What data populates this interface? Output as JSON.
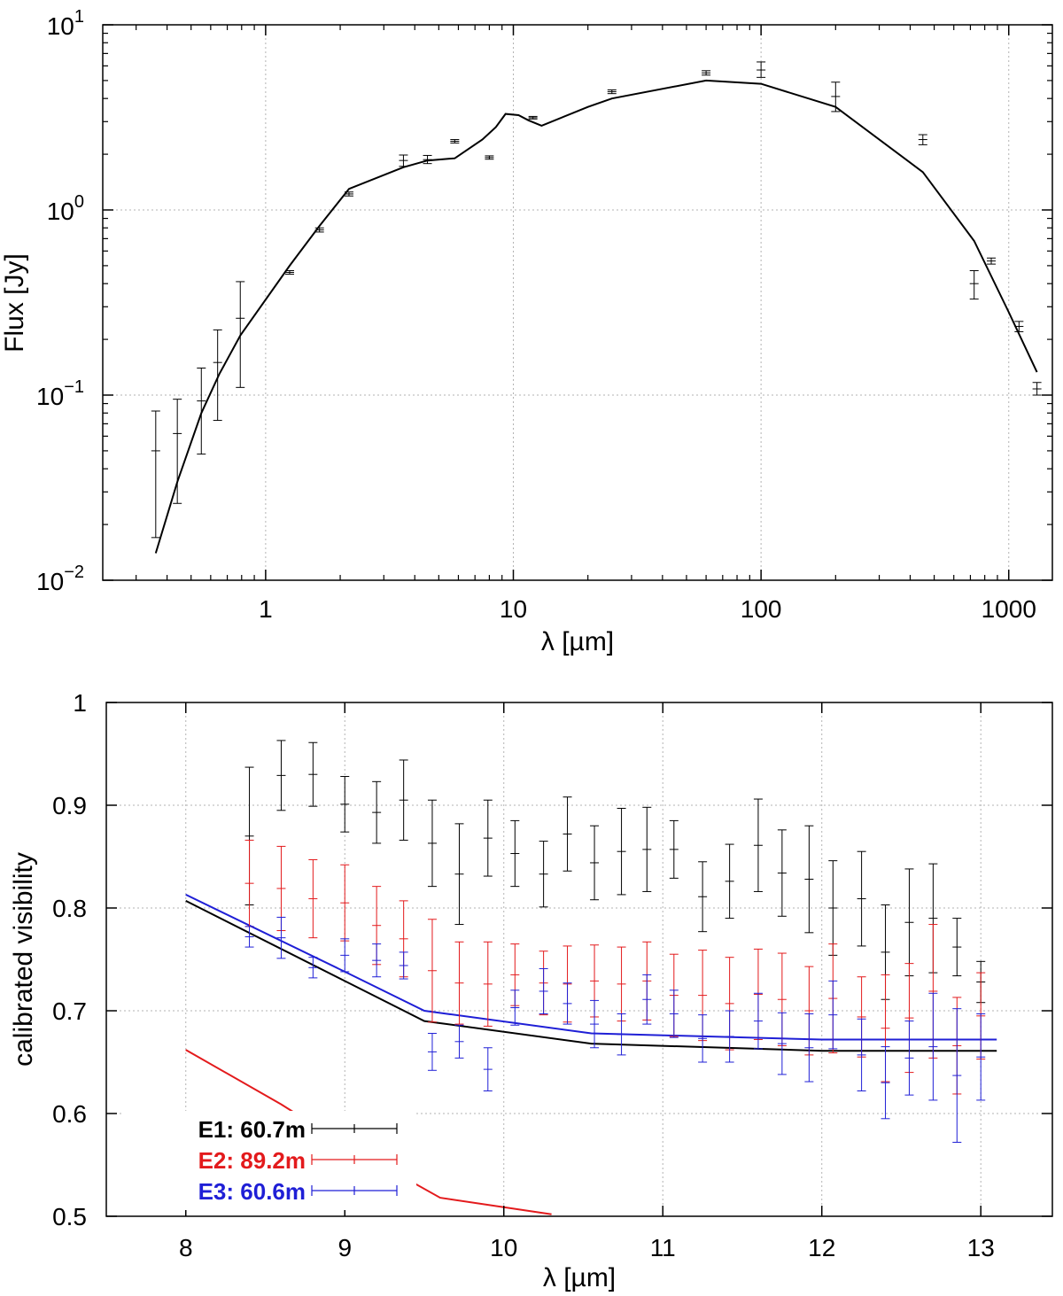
{
  "chart_data": [
    {
      "type": "scatter",
      "title": "",
      "xlabel": "λ [µm]",
      "ylabel": "Flux [Jy]",
      "xscale": "log",
      "yscale": "log",
      "xlim": [
        0.22,
        1500
      ],
      "ylim": [
        0.01,
        10
      ],
      "grid": true,
      "x_ticks": [
        {
          "value": 1,
          "label": "1"
        },
        {
          "value": 10,
          "label": "10"
        },
        {
          "value": 100,
          "label": "100"
        },
        {
          "value": 1000,
          "label": "1000"
        }
      ],
      "y_ticks": [
        {
          "value": 0.01,
          "base": "10",
          "exp": "−2"
        },
        {
          "value": 0.1,
          "base": "10",
          "exp": "−1"
        },
        {
          "value": 1,
          "base": "10",
          "exp": "0"
        },
        {
          "value": 10,
          "base": "10",
          "exp": "1"
        }
      ],
      "series": [
        {
          "kind": "errorbars",
          "color": "#000000",
          "points": [
            {
              "x": 0.36,
              "y": 0.05,
              "lo": 0.017,
              "hi": 0.082
            },
            {
              "x": 0.44,
              "y": 0.062,
              "lo": 0.026,
              "hi": 0.095
            },
            {
              "x": 0.55,
              "y": 0.093,
              "lo": 0.048,
              "hi": 0.14
            },
            {
              "x": 0.64,
              "y": 0.15,
              "lo": 0.073,
              "hi": 0.225
            },
            {
              "x": 0.79,
              "y": 0.26,
              "lo": 0.11,
              "hi": 0.41
            },
            {
              "x": 1.25,
              "y": 0.46,
              "lo": 0.45,
              "hi": 0.47
            },
            {
              "x": 1.65,
              "y": 0.78,
              "lo": 0.76,
              "hi": 0.8
            },
            {
              "x": 2.17,
              "y": 1.22,
              "lo": 1.19,
              "hi": 1.25
            },
            {
              "x": 3.6,
              "y": 1.85,
              "lo": 1.72,
              "hi": 1.98
            },
            {
              "x": 4.5,
              "y": 1.87,
              "lo": 1.78,
              "hi": 1.97
            },
            {
              "x": 5.8,
              "y": 2.35,
              "lo": 2.3,
              "hi": 2.4
            },
            {
              "x": 8.0,
              "y": 1.92,
              "lo": 1.88,
              "hi": 1.96
            },
            {
              "x": 12,
              "y": 3.15,
              "lo": 3.1,
              "hi": 3.2
            },
            {
              "x": 25,
              "y": 4.35,
              "lo": 4.25,
              "hi": 4.45
            },
            {
              "x": 60,
              "y": 5.5,
              "lo": 5.35,
              "hi": 5.65
            },
            {
              "x": 100,
              "y": 5.7,
              "lo": 5.2,
              "hi": 6.3
            },
            {
              "x": 200,
              "y": 4.1,
              "lo": 3.4,
              "hi": 4.9
            },
            {
              "x": 450,
              "y": 2.4,
              "lo": 2.25,
              "hi": 2.55
            },
            {
              "x": 725,
              "y": 0.4,
              "lo": 0.33,
              "hi": 0.47
            },
            {
              "x": 850,
              "y": 0.53,
              "lo": 0.51,
              "hi": 0.55
            },
            {
              "x": 1100,
              "y": 0.235,
              "lo": 0.22,
              "hi": 0.25
            },
            {
              "x": 1300,
              "y": 0.108,
              "lo": 0.1,
              "hi": 0.117
            }
          ]
        },
        {
          "kind": "line",
          "color": "#000000",
          "x": [
            0.36,
            0.44,
            0.55,
            0.65,
            0.79,
            1.25,
            1.65,
            2.17,
            3.6,
            4.5,
            5.8,
            7.5,
            8.5,
            9.3,
            10.5,
            11.5,
            13,
            20,
            25,
            60,
            100,
            200,
            450,
            725,
            1000,
            1300
          ],
          "y": [
            0.014,
            0.034,
            0.08,
            0.13,
            0.21,
            0.5,
            0.82,
            1.3,
            1.7,
            1.85,
            1.9,
            2.4,
            2.8,
            3.3,
            3.25,
            3.05,
            2.85,
            3.6,
            4.0,
            5.0,
            4.8,
            3.6,
            1.6,
            0.68,
            0.28,
            0.133
          ]
        }
      ]
    },
    {
      "type": "line",
      "title": "",
      "xlabel": "λ [µm]",
      "ylabel": "calibrated visibility",
      "xlim": [
        7.5,
        13.45
      ],
      "ylim": [
        0.5,
        1.0
      ],
      "grid": true,
      "x_ticks": [
        8,
        9,
        10,
        11,
        12,
        13
      ],
      "y_ticks": [
        {
          "value": 0.5,
          "label": "0.5"
        },
        {
          "value": 0.6,
          "label": "0.6"
        },
        {
          "value": 0.7,
          "label": "0.7"
        },
        {
          "value": 0.8,
          "label": "0.8"
        },
        {
          "value": 0.9,
          "label": "0.9"
        },
        {
          "value": 1.0,
          "label": "1"
        }
      ],
      "legend_position": "bottom-left",
      "series": [
        {
          "name": "E1: 60.7m",
          "color": "#000000",
          "points": [
            {
              "x": 8.4,
              "y": 0.87,
              "err": 0.067
            },
            {
              "x": 8.6,
              "y": 0.929,
              "err": 0.034
            },
            {
              "x": 8.8,
              "y": 0.93,
              "err": 0.031
            },
            {
              "x": 9.0,
              "y": 0.901,
              "err": 0.027
            },
            {
              "x": 9.2,
              "y": 0.893,
              "err": 0.03
            },
            {
              "x": 9.37,
              "y": 0.905,
              "err": 0.039
            },
            {
              "x": 9.55,
              "y": 0.863,
              "err": 0.042
            },
            {
              "x": 9.72,
              "y": 0.833,
              "err": 0.049
            },
            {
              "x": 9.9,
              "y": 0.868,
              "err": 0.037
            },
            {
              "x": 10.07,
              "y": 0.853,
              "err": 0.032
            },
            {
              "x": 10.25,
              "y": 0.833,
              "err": 0.032
            },
            {
              "x": 10.4,
              "y": 0.872,
              "err": 0.036
            },
            {
              "x": 10.57,
              "y": 0.844,
              "err": 0.036
            },
            {
              "x": 10.74,
              "y": 0.855,
              "err": 0.042
            },
            {
              "x": 10.9,
              "y": 0.857,
              "err": 0.041
            },
            {
              "x": 11.07,
              "y": 0.857,
              "err": 0.028
            },
            {
              "x": 11.25,
              "y": 0.811,
              "err": 0.034
            },
            {
              "x": 11.42,
              "y": 0.826,
              "err": 0.036
            },
            {
              "x": 11.6,
              "y": 0.861,
              "err": 0.045
            },
            {
              "x": 11.75,
              "y": 0.834,
              "err": 0.042
            },
            {
              "x": 11.92,
              "y": 0.828,
              "err": 0.052
            },
            {
              "x": 12.07,
              "y": 0.8,
              "err": 0.046
            },
            {
              "x": 12.25,
              "y": 0.809,
              "err": 0.046
            },
            {
              "x": 12.4,
              "y": 0.757,
              "err": 0.046
            },
            {
              "x": 12.55,
              "y": 0.786,
              "err": 0.052
            },
            {
              "x": 12.7,
              "y": 0.79,
              "err": 0.053
            },
            {
              "x": 12.85,
              "y": 0.762,
              "err": 0.028
            },
            {
              "x": 13.0,
              "y": 0.728,
              "err": 0.02
            }
          ]
        },
        {
          "name": "E2: 89.2m",
          "color": "#e31a1c",
          "points": [
            {
              "x": 8.4,
              "y": 0.824,
              "err": 0.042
            },
            {
              "x": 8.6,
              "y": 0.819,
              "err": 0.041
            },
            {
              "x": 8.8,
              "y": 0.809,
              "err": 0.038
            },
            {
              "x": 9.0,
              "y": 0.805,
              "err": 0.037
            },
            {
              "x": 9.2,
              "y": 0.783,
              "err": 0.038
            },
            {
              "x": 9.37,
              "y": 0.77,
              "err": 0.037
            },
            {
              "x": 9.55,
              "y": 0.739,
              "err": 0.05
            },
            {
              "x": 9.72,
              "y": 0.727,
              "err": 0.04
            },
            {
              "x": 9.9,
              "y": 0.726,
              "err": 0.041
            },
            {
              "x": 10.07,
              "y": 0.735,
              "err": 0.03
            },
            {
              "x": 10.25,
              "y": 0.727,
              "err": 0.031
            },
            {
              "x": 10.4,
              "y": 0.726,
              "err": 0.037
            },
            {
              "x": 10.57,
              "y": 0.729,
              "err": 0.035
            },
            {
              "x": 10.74,
              "y": 0.726,
              "err": 0.036
            },
            {
              "x": 10.9,
              "y": 0.729,
              "err": 0.038
            },
            {
              "x": 11.07,
              "y": 0.715,
              "err": 0.04
            },
            {
              "x": 11.25,
              "y": 0.715,
              "err": 0.044
            },
            {
              "x": 11.42,
              "y": 0.707,
              "err": 0.045
            },
            {
              "x": 11.6,
              "y": 0.716,
              "err": 0.044
            },
            {
              "x": 11.75,
              "y": 0.711,
              "err": 0.045
            },
            {
              "x": 11.92,
              "y": 0.7,
              "err": 0.043
            },
            {
              "x": 12.07,
              "y": 0.712,
              "err": 0.053
            },
            {
              "x": 12.25,
              "y": 0.694,
              "err": 0.039
            },
            {
              "x": 12.4,
              "y": 0.683,
              "err": 0.052
            },
            {
              "x": 12.55,
              "y": 0.693,
              "err": 0.053
            },
            {
              "x": 12.7,
              "y": 0.719,
              "err": 0.065
            },
            {
              "x": 12.85,
              "y": 0.666,
              "err": 0.047
            },
            {
              "x": 13.0,
              "y": 0.695,
              "err": 0.042
            }
          ],
          "model": {
            "x": [
              8.0,
              8.6,
              9.0,
              9.6,
              10.3
            ],
            "y": [
              0.662,
              0.609,
              0.57,
              0.518,
              0.502
            ]
          }
        },
        {
          "name": "E3: 60.6m",
          "color": "#1f1fd6",
          "points": [
            {
              "x": 8.4,
              "y": 0.772,
              "err": 0.01
            },
            {
              "x": 8.6,
              "y": 0.771,
              "err": 0.02
            },
            {
              "x": 8.8,
              "y": 0.742,
              "err": 0.01
            },
            {
              "x": 9.0,
              "y": 0.754,
              "err": 0.016
            },
            {
              "x": 9.2,
              "y": 0.749,
              "err": 0.016
            },
            {
              "x": 9.37,
              "y": 0.744,
              "err": 0.013
            },
            {
              "x": 9.55,
              "y": 0.66,
              "err": 0.018
            },
            {
              "x": 9.72,
              "y": 0.67,
              "err": 0.016
            },
            {
              "x": 9.9,
              "y": 0.643,
              "err": 0.021
            },
            {
              "x": 10.07,
              "y": 0.703,
              "err": 0.017
            },
            {
              "x": 10.25,
              "y": 0.719,
              "err": 0.022
            },
            {
              "x": 10.4,
              "y": 0.707,
              "err": 0.02
            },
            {
              "x": 10.57,
              "y": 0.687,
              "err": 0.023
            },
            {
              "x": 10.74,
              "y": 0.677,
              "err": 0.02
            },
            {
              "x": 10.9,
              "y": 0.711,
              "err": 0.024
            },
            {
              "x": 11.07,
              "y": 0.697,
              "err": 0.023
            },
            {
              "x": 11.25,
              "y": 0.673,
              "err": 0.023
            },
            {
              "x": 11.42,
              "y": 0.675,
              "err": 0.025
            },
            {
              "x": 11.6,
              "y": 0.69,
              "err": 0.027
            },
            {
              "x": 11.75,
              "y": 0.668,
              "err": 0.03
            },
            {
              "x": 11.92,
              "y": 0.664,
              "err": 0.033
            },
            {
              "x": 12.07,
              "y": 0.696,
              "err": 0.033
            },
            {
              "x": 12.25,
              "y": 0.657,
              "err": 0.035
            },
            {
              "x": 12.4,
              "y": 0.63,
              "err": 0.035
            },
            {
              "x": 12.55,
              "y": 0.654,
              "err": 0.036
            },
            {
              "x": 12.7,
              "y": 0.665,
              "err": 0.052
            },
            {
              "x": 12.85,
              "y": 0.637,
              "err": 0.065
            },
            {
              "x": 13.0,
              "y": 0.655,
              "err": 0.042
            }
          ],
          "model": {
            "x": [
              8.0,
              9.0,
              9.5,
              10.55,
              12.0,
              13.1
            ],
            "y": [
              0.813,
              0.738,
              0.7,
              0.678,
              0.672,
              0.672
            ]
          }
        },
        {
          "name": "",
          "color": "#000000",
          "model": {
            "x": [
              8.0,
              9.0,
              9.5,
              10.55,
              12.0,
              13.1
            ],
            "y": [
              0.807,
              0.729,
              0.69,
              0.668,
              0.661,
              0.661
            ]
          }
        }
      ]
    }
  ]
}
